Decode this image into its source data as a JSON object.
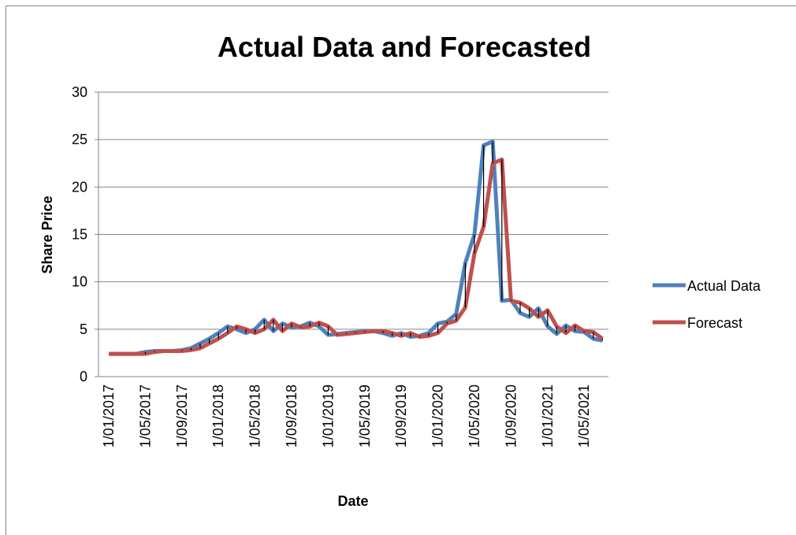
{
  "chart_data": {
    "type": "line",
    "title": "Actual Data and Forecasted",
    "x_label": "Date",
    "y_label": "Share Price",
    "categories": [
      "1/01/2017",
      null,
      null,
      null,
      "1/05/2017",
      null,
      null,
      null,
      "1/09/2017",
      null,
      null,
      null,
      "1/01/2018",
      null,
      null,
      null,
      "1/05/2018",
      null,
      null,
      null,
      "1/09/2018",
      null,
      null,
      null,
      "1/01/2019",
      null,
      null,
      null,
      "1/05/2019",
      null,
      null,
      null,
      "1/09/2019",
      null,
      null,
      null,
      "1/01/2020",
      null,
      null,
      null,
      "1/05/2020",
      null,
      null,
      null,
      "1/09/2020",
      null,
      null,
      null,
      "1/01/2021",
      null,
      null,
      null,
      "1/05/2021",
      null,
      null
    ],
    "series": [
      {
        "name": "Actual Data",
        "color": "#4f81bd",
        "values": [
          2.4,
          2.4,
          2.4,
          2.4,
          2.6,
          2.7,
          2.7,
          2.7,
          2.8,
          3.0,
          3.5,
          4.0,
          4.6,
          5.3,
          5.0,
          4.6,
          5.0,
          6.0,
          4.8,
          5.6,
          5.2,
          5.3,
          5.7,
          5.3,
          4.4,
          4.5,
          4.6,
          4.7,
          4.8,
          4.8,
          4.6,
          4.3,
          4.6,
          4.2,
          4.3,
          4.6,
          5.6,
          5.8,
          6.6,
          12,
          15,
          24.4,
          24.8,
          8.0,
          8.1,
          6.7,
          6.3,
          7.2,
          5.3,
          4.5,
          5.4,
          4.8,
          4.7,
          4.0,
          3.8
        ]
      },
      {
        "name": "Forecast",
        "color": "#c0504d",
        "values": [
          2.4,
          2.4,
          2.4,
          2.4,
          2.4,
          2.6,
          2.7,
          2.7,
          2.7,
          2.8,
          3.0,
          3.5,
          4.0,
          4.6,
          5.3,
          5.0,
          4.6,
          5.0,
          6.0,
          4.8,
          5.6,
          5.2,
          5.3,
          5.7,
          5.3,
          4.4,
          4.5,
          4.6,
          4.7,
          4.8,
          4.8,
          4.6,
          4.3,
          4.6,
          4.2,
          4.3,
          4.6,
          5.6,
          5.9,
          7.3,
          13,
          15.8,
          22.5,
          22.9,
          8.0,
          7.8,
          7.2,
          6.3,
          7.0,
          5.3,
          4.6,
          5.4,
          4.8,
          4.7,
          4.0
        ]
      }
    ],
    "ylim": [
      0,
      30
    ],
    "yticks": [
      0,
      5,
      10,
      15,
      20,
      25,
      30
    ],
    "grid": true,
    "legend": "right"
  }
}
